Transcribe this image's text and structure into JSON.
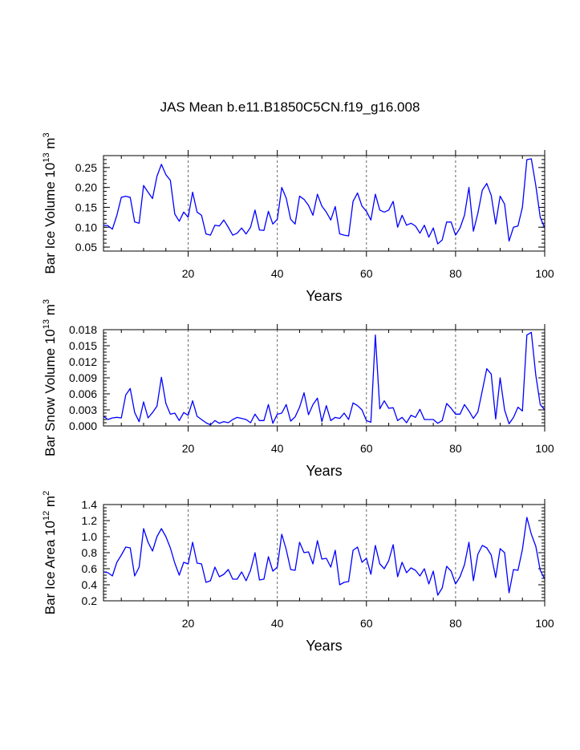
{
  "title": "JAS Mean b.e11.B1850C5CN.f19_g16.008",
  "chart_data": [
    {
      "type": "line",
      "ylabel": "Bar Ice Volume 10",
      "ylabel_exp": "13",
      "ylabel_unit": " m",
      "ylabel_unit_exp": "3",
      "xlabel": "Years",
      "xlim": [
        1,
        100
      ],
      "ylim": [
        0.04,
        0.28
      ],
      "yticks": [
        0.05,
        0.1,
        0.15,
        0.2,
        0.25
      ],
      "ytick_labels": [
        "0.05",
        "0.10",
        "0.15",
        "0.20",
        "0.25"
      ],
      "xticks": [
        20,
        40,
        60,
        80,
        100
      ],
      "xtick_labels": [
        "20",
        "40",
        "60",
        "80",
        "100"
      ],
      "vlines": [
        20,
        40,
        60,
        80
      ],
      "line_color": "#0000ff",
      "values": [
        0.105,
        0.104,
        0.095,
        0.13,
        0.175,
        0.178,
        0.175,
        0.113,
        0.11,
        0.205,
        0.188,
        0.172,
        0.228,
        0.258,
        0.232,
        0.218,
        0.133,
        0.115,
        0.138,
        0.125,
        0.188,
        0.138,
        0.13,
        0.083,
        0.08,
        0.105,
        0.103,
        0.118,
        0.1,
        0.08,
        0.085,
        0.098,
        0.083,
        0.1,
        0.143,
        0.093,
        0.092,
        0.14,
        0.108,
        0.12,
        0.2,
        0.173,
        0.12,
        0.108,
        0.178,
        0.17,
        0.155,
        0.13,
        0.183,
        0.153,
        0.138,
        0.118,
        0.152,
        0.083,
        0.08,
        0.078,
        0.165,
        0.186,
        0.153,
        0.14,
        0.118,
        0.183,
        0.143,
        0.138,
        0.143,
        0.165,
        0.1,
        0.13,
        0.105,
        0.11,
        0.103,
        0.085,
        0.105,
        0.075,
        0.098,
        0.058,
        0.068,
        0.113,
        0.113,
        0.08,
        0.098,
        0.13,
        0.2,
        0.09,
        0.135,
        0.193,
        0.21,
        0.18,
        0.108,
        0.178,
        0.158,
        0.065,
        0.1,
        0.103,
        0.15,
        0.27,
        0.272,
        0.205,
        0.125,
        0.098
      ]
    },
    {
      "type": "line",
      "ylabel": "Bar Snow Volume 10",
      "ylabel_exp": "13",
      "ylabel_unit": " m",
      "ylabel_unit_exp": "3",
      "xlabel": "Years",
      "xlim": [
        1,
        100
      ],
      "ylim": [
        0.0,
        0.018
      ],
      "yticks": [
        0.0,
        0.003,
        0.006,
        0.009,
        0.012,
        0.015,
        0.018
      ],
      "ytick_labels": [
        "0.000",
        "0.003",
        "0.006",
        "0.009",
        "0.012",
        "0.015",
        "0.018"
      ],
      "xticks": [
        20,
        40,
        60,
        80,
        100
      ],
      "xtick_labels": [
        "20",
        "40",
        "60",
        "80",
        "100"
      ],
      "vlines": [
        20,
        40,
        60,
        80
      ],
      "line_color": "#0000ff",
      "values": [
        0.0018,
        0.0012,
        0.0015,
        0.0016,
        0.0015,
        0.0058,
        0.007,
        0.0025,
        0.0008,
        0.0045,
        0.0015,
        0.0025,
        0.0037,
        0.0091,
        0.0042,
        0.0022,
        0.0024,
        0.001,
        0.0025,
        0.002,
        0.0047,
        0.0018,
        0.0012,
        0.0006,
        0.0002,
        0.001,
        0.0005,
        0.0008,
        0.0006,
        0.0012,
        0.0016,
        0.0014,
        0.0012,
        0.0006,
        0.0022,
        0.001,
        0.001,
        0.004,
        0.0005,
        0.0022,
        0.0024,
        0.004,
        0.0009,
        0.0017,
        0.0035,
        0.0062,
        0.0021,
        0.004,
        0.0052,
        0.0008,
        0.0038,
        0.001,
        0.0016,
        0.0014,
        0.0024,
        0.0012,
        0.0043,
        0.0038,
        0.003,
        0.001,
        0.0007,
        0.017,
        0.0032,
        0.0047,
        0.0033,
        0.0034,
        0.001,
        0.0016,
        0.0006,
        0.002,
        0.0016,
        0.0031,
        0.0012,
        0.0012,
        0.0012,
        0.0005,
        0.001,
        0.0042,
        0.0033,
        0.0022,
        0.0022,
        0.004,
        0.0028,
        0.0014,
        0.0026,
        0.0066,
        0.0107,
        0.0097,
        0.0013,
        0.009,
        0.003,
        0.0004,
        0.0016,
        0.0035,
        0.0028,
        0.017,
        0.0175,
        0.0095,
        0.004,
        0.003
      ]
    },
    {
      "type": "line",
      "ylabel": "Bar Ice Area 10",
      "ylabel_exp": "12",
      "ylabel_unit": " m",
      "ylabel_unit_exp": "2",
      "xlabel": "Years",
      "xlim": [
        1,
        100
      ],
      "ylim": [
        0.2,
        1.4
      ],
      "yticks": [
        0.2,
        0.4,
        0.6,
        0.8,
        1.0,
        1.2,
        1.4
      ],
      "ytick_labels": [
        "0.2",
        "0.4",
        "0.6",
        "0.8",
        "1.0",
        "1.2",
        "1.4"
      ],
      "xticks": [
        20,
        40,
        60,
        80,
        100
      ],
      "xtick_labels": [
        "20",
        "40",
        "60",
        "80",
        "100"
      ],
      "vlines": [
        20,
        40,
        60,
        80
      ],
      "line_color": "#0000ff",
      "values": [
        0.56,
        0.55,
        0.51,
        0.68,
        0.77,
        0.87,
        0.86,
        0.51,
        0.62,
        1.1,
        0.93,
        0.82,
        1.0,
        1.1,
        1.0,
        0.86,
        0.67,
        0.52,
        0.68,
        0.66,
        0.93,
        0.67,
        0.66,
        0.43,
        0.45,
        0.62,
        0.5,
        0.53,
        0.59,
        0.47,
        0.47,
        0.56,
        0.45,
        0.58,
        0.8,
        0.46,
        0.47,
        0.75,
        0.57,
        0.62,
        1.03,
        0.84,
        0.59,
        0.58,
        0.93,
        0.8,
        0.81,
        0.66,
        0.95,
        0.72,
        0.73,
        0.62,
        0.83,
        0.4,
        0.43,
        0.44,
        0.83,
        0.87,
        0.68,
        0.73,
        0.53,
        0.89,
        0.66,
        0.6,
        0.7,
        0.9,
        0.5,
        0.68,
        0.55,
        0.61,
        0.58,
        0.51,
        0.6,
        0.41,
        0.57,
        0.27,
        0.36,
        0.63,
        0.57,
        0.41,
        0.5,
        0.65,
        0.93,
        0.45,
        0.78,
        0.89,
        0.86,
        0.77,
        0.49,
        0.85,
        0.8,
        0.3,
        0.59,
        0.58,
        0.84,
        1.24,
        1.03,
        0.88,
        0.58,
        0.47
      ]
    }
  ]
}
